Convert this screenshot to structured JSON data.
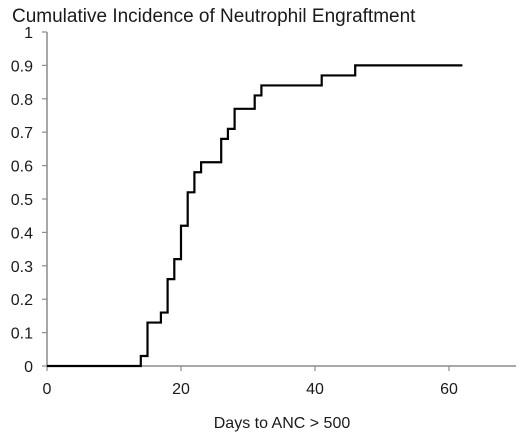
{
  "chart_data": {
    "type": "line",
    "step": true,
    "title": "Cumulative Incidence of Neutrophil Engraftment",
    "xlabel": "Days to ANC > 500",
    "ylabel": "",
    "xlim": [
      0,
      70
    ],
    "ylim": [
      0,
      1
    ],
    "x_ticks": [
      0,
      20,
      40,
      60
    ],
    "y_ticks": [
      0,
      0.1,
      0.2,
      0.3,
      0.4,
      0.5,
      0.6,
      0.7,
      0.8,
      0.9,
      1
    ],
    "x_tick_labels": [
      "0",
      "20",
      "40",
      "60"
    ],
    "y_tick_labels": [
      "0",
      "0.1",
      "0.2",
      "0.3",
      "0.4",
      "0.5",
      "0.6",
      "0.7",
      "0.8",
      "0.9",
      "1"
    ],
    "grid": false,
    "legend": "none",
    "series": [
      {
        "x": [
          0,
          14,
          15,
          17,
          18,
          19,
          20,
          21,
          22,
          23,
          26,
          27,
          28,
          31,
          32,
          41,
          46,
          62
        ],
        "y": [
          0,
          0.03,
          0.13,
          0.16,
          0.26,
          0.32,
          0.42,
          0.52,
          0.58,
          0.61,
          0.68,
          0.71,
          0.77,
          0.81,
          0.84,
          0.87,
          0.9,
          0.9
        ],
        "color": "#000000"
      }
    ]
  }
}
